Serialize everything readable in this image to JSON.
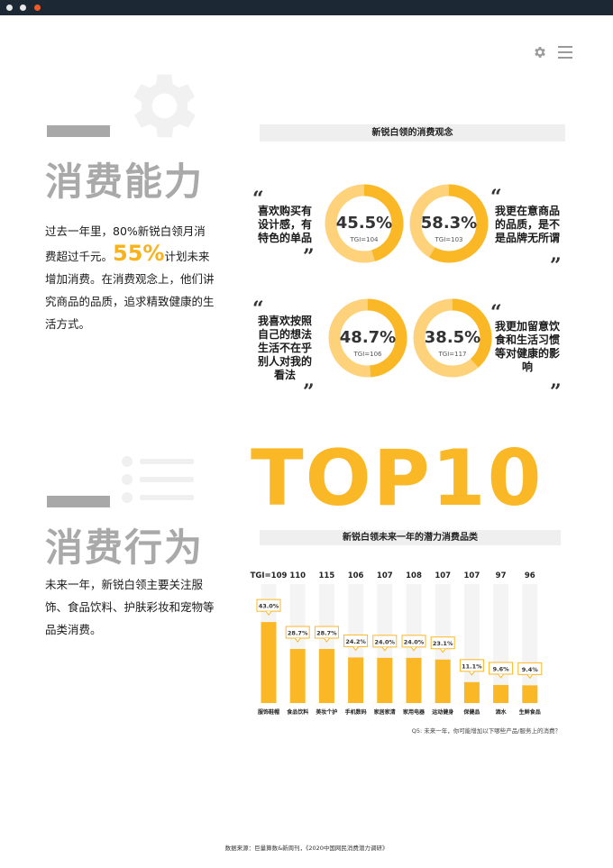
{
  "colors": {
    "accent": "#fbb826",
    "accent_light": "#fdd27a",
    "grey_title": "#a9a9a9",
    "titlebar": "#1c2833",
    "close_dot": "#f05a28"
  },
  "icons": [
    "gear-icon",
    "menu-icon",
    "quote-open-icon",
    "quote-close-icon"
  ],
  "section1": {
    "title": "消费能力",
    "text_before": "过去一年里，80%新锐白领月消费超过千元。",
    "highlight": "55%",
    "text_after": "计划未来增加消费。在消费观念上，他们讲究商品的品质，追求精致健康的生活方式。"
  },
  "attitudes": {
    "header": "新锐白领的消费观念",
    "items": [
      {
        "text": "喜欢购买有设计感，有特色的单品",
        "value": 45.5,
        "pct": "45.5%",
        "tgi": "TGI=104"
      },
      {
        "text": "我更在意商品的品质，是不是品牌无所谓",
        "value": 58.3,
        "pct": "58.3%",
        "tgi": "TGI=103"
      },
      {
        "text": "我喜欢按照自己的想法生活不在乎别人对我的看法",
        "value": 48.7,
        "pct": "48.7%",
        "tgi": "TGI=106"
      },
      {
        "text": "我更加留意饮食和生活习惯等对健康的影响",
        "value": 38.5,
        "pct": "38.5%",
        "tgi": "TGI=117"
      }
    ]
  },
  "section2": {
    "title": "消费行为",
    "text": "未来一年，新锐白领主要关注服饰、食品饮料、护肤彩妆和宠物等品类消费。",
    "top10": "TOP10",
    "chart_header": "新锐白领未来一年的潜力消费品类"
  },
  "chart_data": {
    "type": "bar",
    "title": "新锐白领未来一年的潜力消费品类",
    "categories": [
      "服饰鞋帽",
      "食品饮料",
      "美妆个护",
      "手机数码",
      "家居家清",
      "家用电器",
      "运动健身",
      "保健品",
      "酒水",
      "生鲜食品"
    ],
    "values": [
      43.0,
      28.7,
      28.7,
      24.2,
      24.0,
      24.0,
      23.1,
      11.1,
      9.6,
      9.4
    ],
    "value_labels": [
      "43.0%",
      "28.7%",
      "28.7%",
      "24.2%",
      "24.0%",
      "24.0%",
      "23.1%",
      "11.1%",
      "9.6%",
      "9.4%"
    ],
    "tgi": [
      "TGI=109",
      "110",
      "115",
      "106",
      "107",
      "108",
      "107",
      "107",
      "97",
      "96"
    ],
    "ylim": [
      0,
      50
    ],
    "grid": false,
    "legend": "none"
  },
  "question": "Q5: 未来一年，你可能增加以下哪些产品/服务上的消费？",
  "source": "数据来源：巨量算数&新周刊，《2020中国网民消费潜力调研》"
}
